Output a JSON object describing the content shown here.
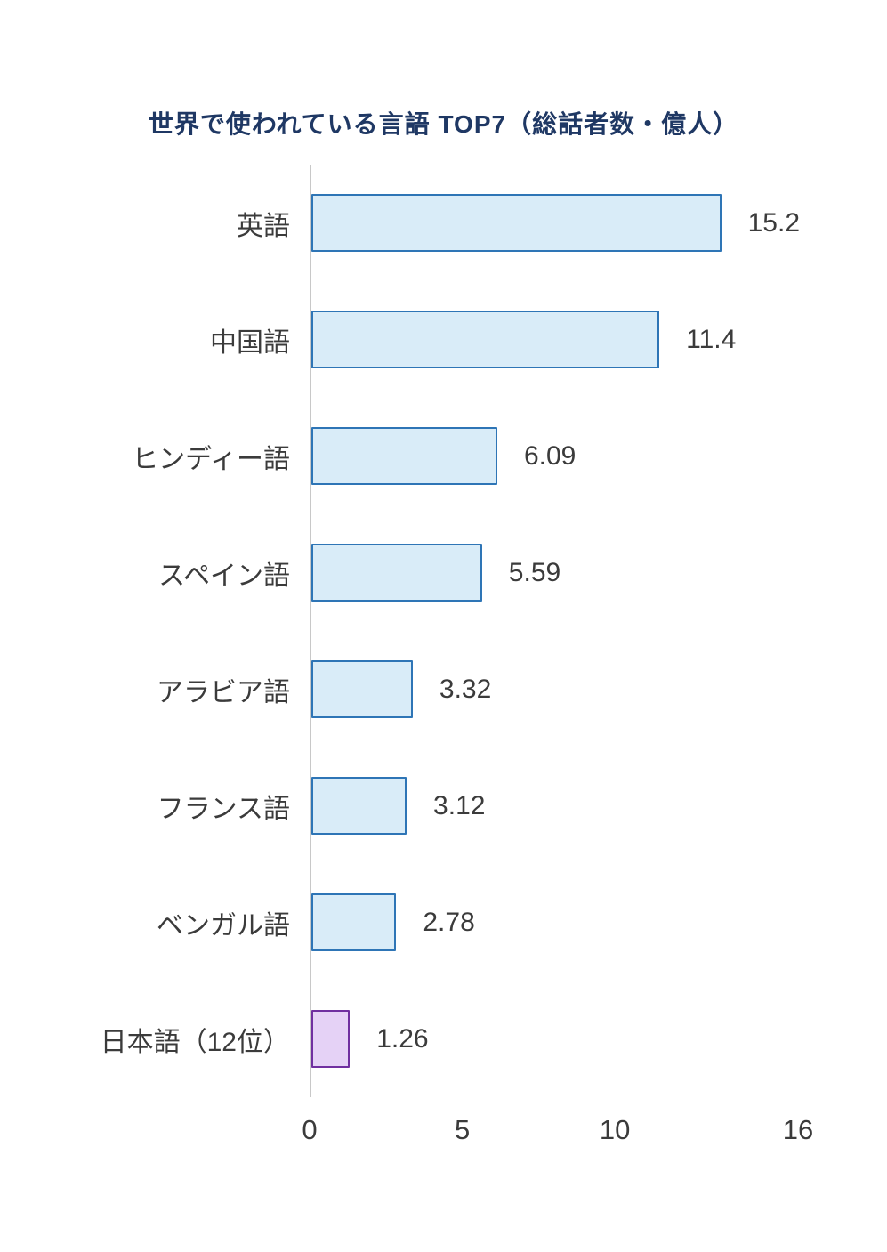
{
  "colors": {
    "title": "#1f3864",
    "text": "#3b3b3b",
    "axis_line": "#c8c8c8"
  },
  "chart_data": {
    "type": "bar",
    "orientation": "horizontal",
    "title": "世界で使われている言語 TOP7（総話者数・億人）",
    "categories": [
      "英語",
      "中国語",
      "ヒンディー語",
      "スペイン語",
      "アラビア語",
      "フランス語",
      "ベンガル語",
      "日本語（12位）"
    ],
    "values": [
      15.2,
      11.4,
      6.09,
      5.59,
      3.32,
      3.12,
      2.78,
      1.26
    ],
    "value_labels": [
      "15.2",
      "11.4",
      "6.09",
      "5.59",
      "3.32",
      "3.12",
      "2.78",
      "1.26"
    ],
    "xlabel": "",
    "ylabel": "",
    "xlim": [
      0,
      16
    ],
    "xticks": [
      0,
      5,
      10,
      16
    ],
    "xtick_labels": [
      "0",
      "5",
      "10",
      "16"
    ],
    "grid": false,
    "legend": null,
    "bar_fill": "#d9ecf8",
    "bar_stroke": "#2e75b6",
    "highlight_index": 7,
    "highlight_fill": "#e5d2f6",
    "highlight_stroke": "#7030a0"
  }
}
